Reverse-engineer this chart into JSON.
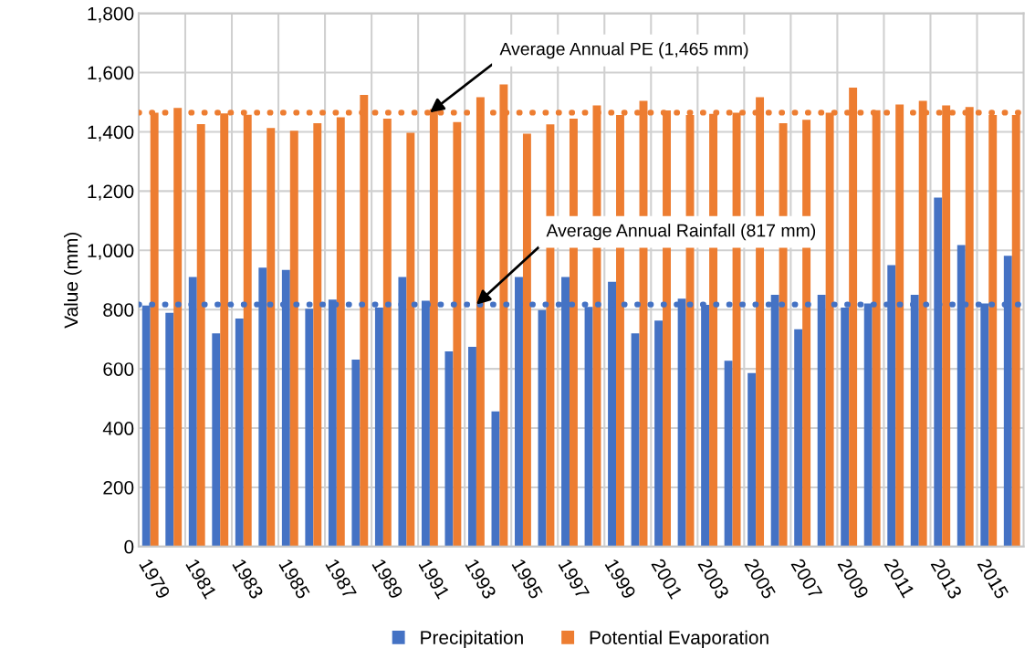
{
  "chart_data": {
    "type": "bar",
    "ylabel": "Value (mm)",
    "categories": [
      "1979",
      null,
      "1981",
      null,
      "1983",
      null,
      "1985",
      null,
      "1987",
      null,
      "1989",
      null,
      "1991",
      null,
      "1993",
      null,
      "1995",
      null,
      "1997",
      null,
      "1999",
      null,
      "2001",
      null,
      "2003",
      null,
      "2005",
      null,
      "2007",
      null,
      "2009",
      null,
      "2011",
      null,
      "2013",
      null,
      "2015",
      null
    ],
    "series": [
      {
        "name": "Precipitation",
        "color": "#4472c4",
        "values": [
          814,
          789,
          910,
          720,
          770,
          942,
          934,
          803,
          834,
          631,
          807,
          910,
          830,
          659,
          674,
          456,
          910,
          798,
          910,
          809,
          894,
          720,
          763,
          837,
          816,
          627,
          586,
          850,
          734,
          850,
          807,
          821,
          950,
          850,
          1178,
          1018,
          821,
          982
        ]
      },
      {
        "name": "Potential Evaporation",
        "color": "#ed7d31",
        "values": [
          1465,
          1481,
          1426,
          1462,
          1458,
          1413,
          1404,
          1429,
          1449,
          1525,
          1445,
          1397,
          1477,
          1433,
          1517,
          1560,
          1394,
          1425,
          1445,
          1489,
          1457,
          1505,
          1472,
          1457,
          1461,
          1465,
          1517,
          1429,
          1441,
          1465,
          1549,
          1473,
          1492,
          1505,
          1489,
          1484,
          1457,
          1457
        ]
      }
    ],
    "ylim": [
      0,
      1800
    ],
    "yticks": [
      0,
      200,
      400,
      600,
      800,
      {
        "value": 1000,
        "label": "1,000"
      },
      {
        "value": 1200,
        "label": "1,200"
      },
      {
        "value": 1400,
        "label": "1,400"
      },
      {
        "value": 1600,
        "label": "1,600"
      },
      {
        "value": 1800,
        "label": "1,800"
      }
    ],
    "ref_lines": [
      {
        "axis": "y",
        "value": 1465,
        "color": "#ed7d31",
        "line_style": "dotted"
      },
      {
        "axis": "y",
        "value": 817,
        "color": "#4472c4",
        "line_style": "dotted"
      }
    ],
    "annotations": [
      {
        "text": "Average Annual PE (1,465 mm)",
        "x": "1991",
        "y": 1465
      },
      {
        "text": "Average Annual Rainfall (817 mm)",
        "x": "1993",
        "y": 817
      }
    ],
    "grid": true,
    "legend": "bottom"
  }
}
